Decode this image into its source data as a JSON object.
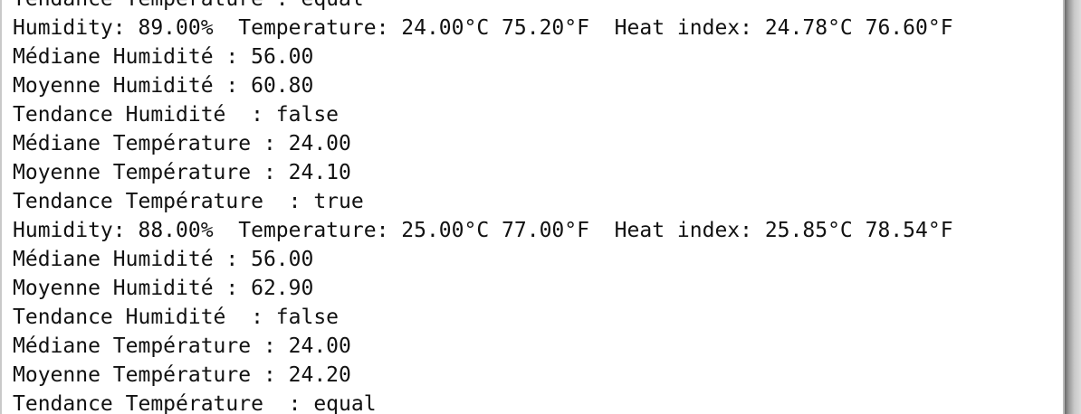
{
  "console": {
    "lines": [
      "Tendance Température : equal",
      "Humidity: 89.00%  Temperature: 24.00°C 75.20°F  Heat index: 24.78°C 76.60°F",
      "Médiane Humidité : 56.00",
      "Moyenne Humidité : 60.80",
      "Tendance Humidité  : false",
      "Médiane Température : 24.00",
      "Moyenne Température : 24.10",
      "Tendance Température  : true",
      "Humidity: 88.00%  Temperature: 25.00°C 77.00°F  Heat index: 25.85°C 78.54°F",
      "Médiane Humidité : 56.00",
      "Moyenne Humidité : 62.90",
      "Tendance Humidité  : false",
      "Médiane Température : 24.00",
      "Moyenne Température : 24.20",
      "Tendance Température  : equal"
    ]
  }
}
